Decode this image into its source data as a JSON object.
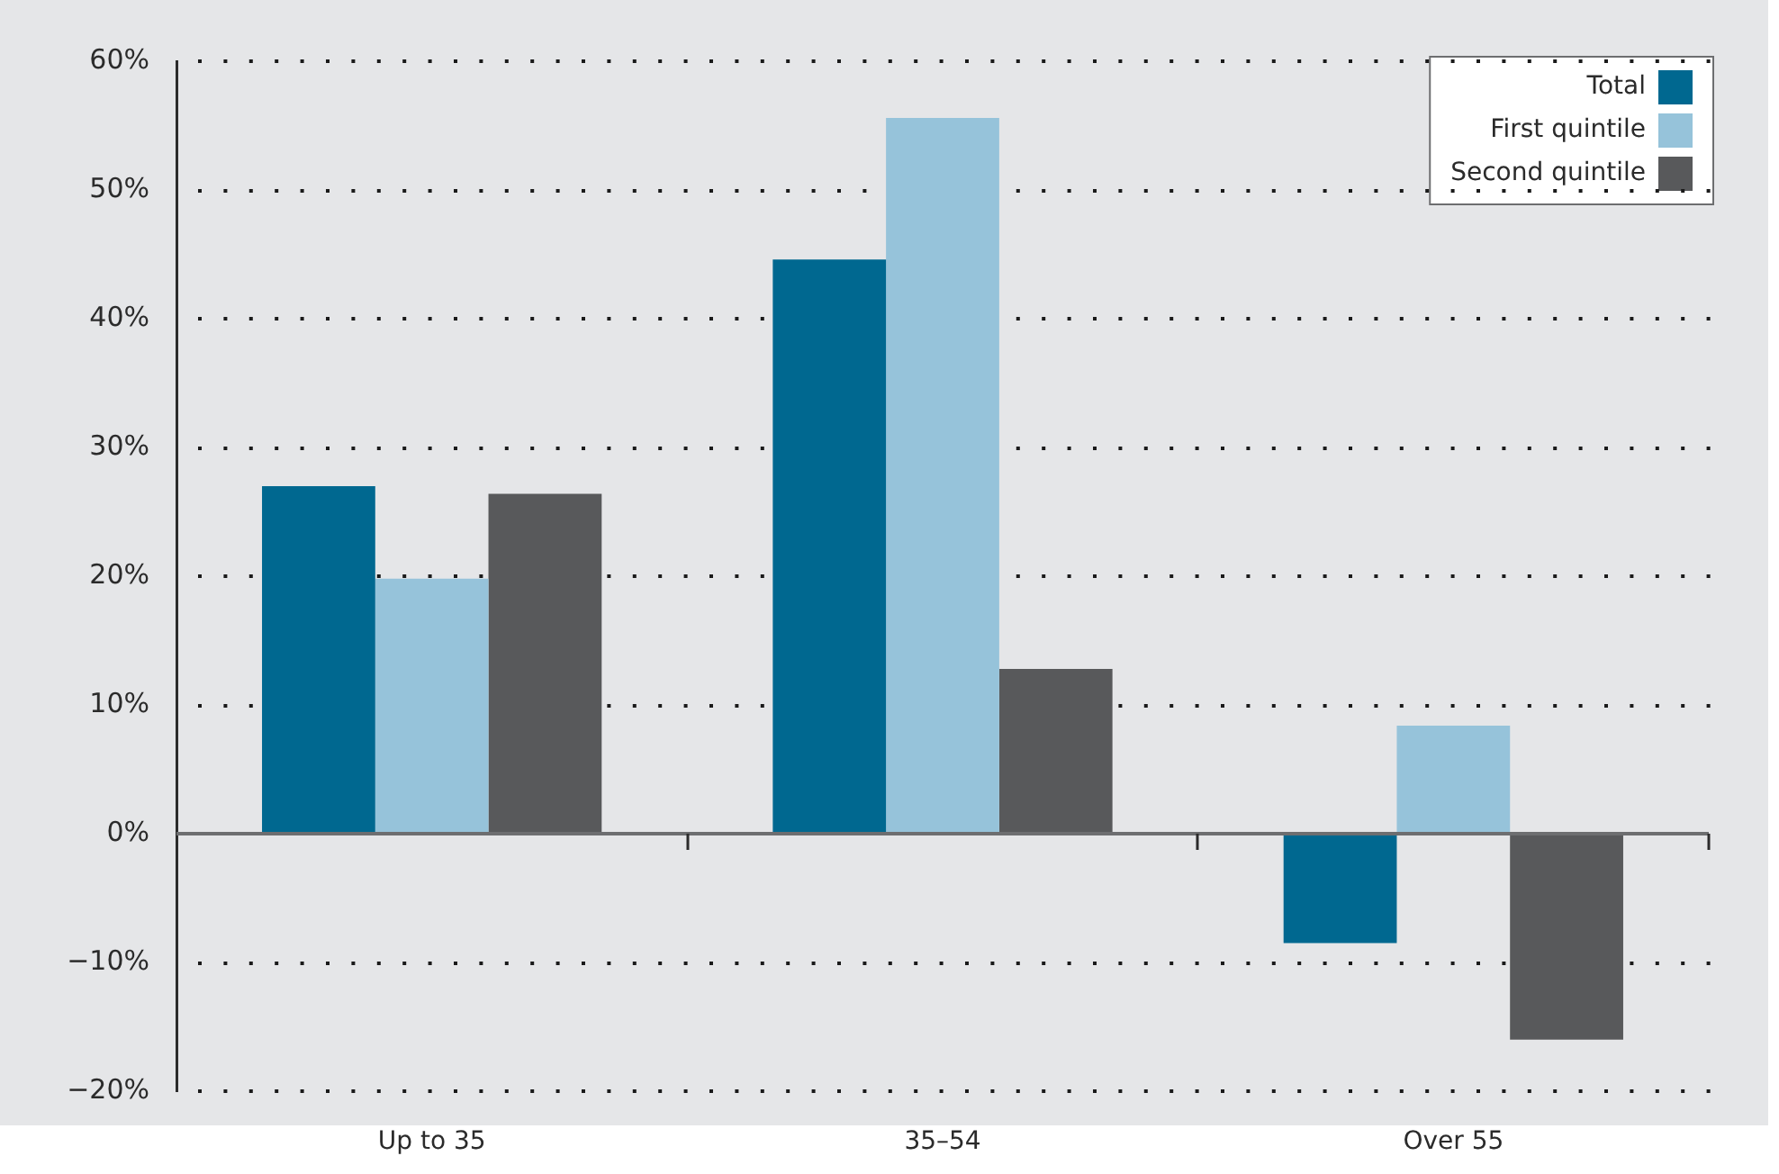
{
  "chart_data": {
    "type": "bar",
    "categories": [
      "Up to 35",
      "35–54",
      "Over 55"
    ],
    "series": [
      {
        "name": "Total",
        "color": "#006890",
        "values": [
          27.0,
          44.6,
          -8.5
        ]
      },
      {
        "name": "First quintile",
        "color": "#96c3da",
        "values": [
          19.8,
          55.6,
          8.4
        ]
      },
      {
        "name": "Second quintile",
        "color": "#58595b",
        "values": [
          26.4,
          12.8,
          -16.0
        ]
      }
    ],
    "ylim": [
      -20,
      60
    ],
    "yticks": [
      {
        "value": -20,
        "label": "−20%"
      },
      {
        "value": -10,
        "label": "−10%"
      },
      {
        "value": 0,
        "label": "0%"
      },
      {
        "value": 10,
        "label": "10%"
      },
      {
        "value": 20,
        "label": "20%"
      },
      {
        "value": 30,
        "label": "30%"
      },
      {
        "value": 40,
        "label": "40%"
      },
      {
        "value": 50,
        "label": "50%"
      },
      {
        "value": 60,
        "label": "60%"
      }
    ],
    "grid": "y",
    "legend": "top right"
  }
}
